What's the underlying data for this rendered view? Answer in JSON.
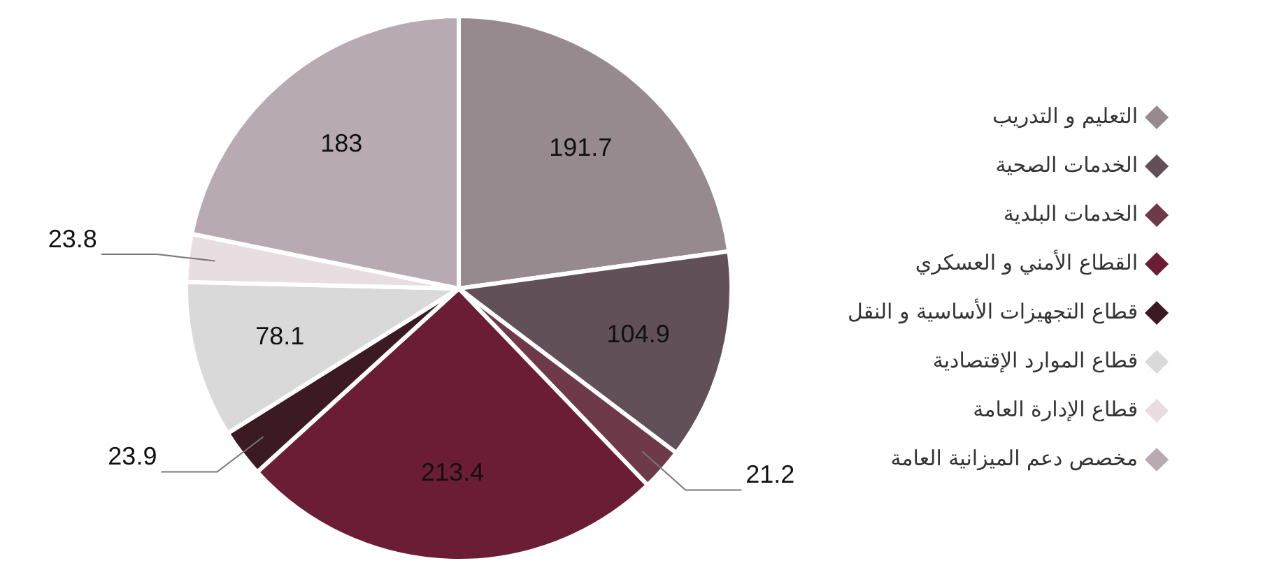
{
  "chart_data": {
    "type": "pie",
    "categories": [
      "التعليم و التدريب",
      "الخدمات الصحية",
      "الخدمات البلدية",
      "القطاع الأمني و العسكري",
      "قطاع التجهيزات الأساسية و النقل",
      "قطاع الموارد الإقتصادية",
      "قطاع الإدارة العامة",
      "مخصص دعم الميزانية العامة"
    ],
    "values": [
      191.7,
      104.9,
      21.2,
      213.4,
      23.9,
      78.1,
      23.8,
      183
    ],
    "colors": [
      "#968a8e",
      "#625058",
      "#6e3a4a",
      "#6b1d35",
      "#3c1a24",
      "#d9d9d9",
      "#e8dde0",
      "#b8aab2"
    ],
    "data_labels": true,
    "legend": "right"
  }
}
